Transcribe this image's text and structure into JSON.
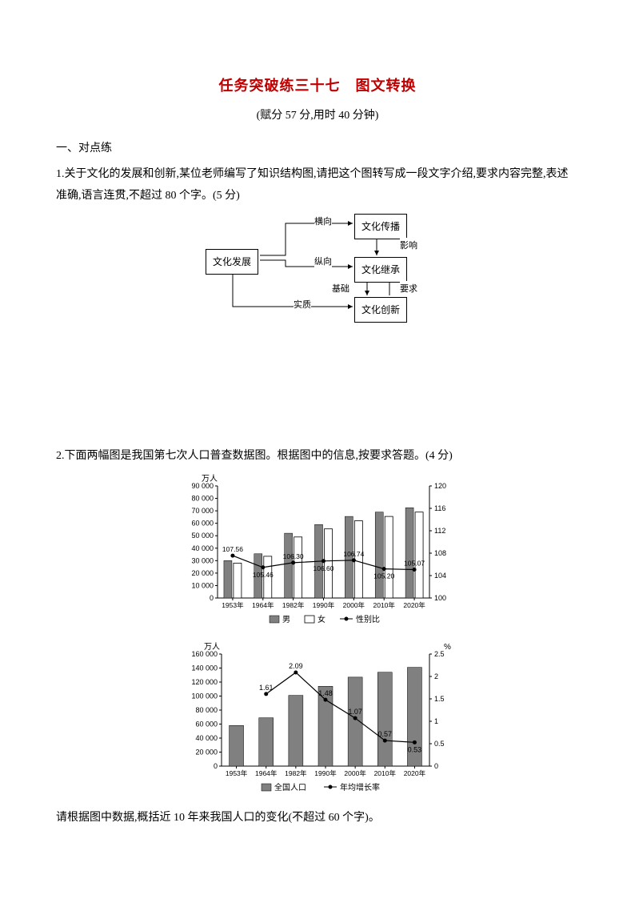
{
  "title": "任务突破练三十七　图文转换",
  "subtitle": "(赋分 57 分,用时 40 分钟)",
  "sec1": "一、对点练",
  "q1": "1.关于文化的发展和创新,某位老师编写了知识结构图,请把这个图转写成一段文字介绍,要求内容完整,表述准确,语言连贯,不超过 80 个字。(5 分)",
  "diagram": {
    "n1": "文化发展",
    "n2": "文化传播",
    "n3": "文化继承",
    "n4": "文化创新",
    "e1": "横向",
    "e2": "纵向",
    "e3": "实质",
    "e4": "影响",
    "e5": "基础",
    "e6": "要求"
  },
  "q2": "2.下面两幅图是我国第七次人口普查数据图。根据图中的信息,按要求答题。(4 分)",
  "q2b": "请根据图中数据,概括近 10 年来我国人口的变化(不超过 60 个字)。",
  "chart1": {
    "y1_unit": "万人",
    "y2_max": 120,
    "categories": [
      "1953年",
      "1964年",
      "1982年",
      "1990年",
      "2000年",
      "2010年",
      "2020年"
    ],
    "y1_ticks": [
      "0",
      "10 000",
      "20 000",
      "30 000",
      "40 000",
      "50 000",
      "60 000",
      "70 000",
      "80 000",
      "90 000"
    ],
    "y2_ticks": [
      "100",
      "104",
      "108",
      "112",
      "116",
      "120"
    ],
    "male": [
      30000,
      35500,
      52000,
      59000,
      65500,
      69000,
      72500
    ],
    "female": [
      28000,
      33500,
      49000,
      55500,
      62000,
      65500,
      69000
    ],
    "ratio": [
      107.56,
      105.46,
      106.3,
      106.6,
      106.74,
      105.2,
      105.07
    ],
    "legend": [
      "男",
      "女",
      "性别比"
    ],
    "colors": {
      "male": "#808080",
      "female": "#ffffff",
      "line": "#000000",
      "axis": "#000000",
      "grid": "#000000"
    }
  },
  "chart2": {
    "y1_unit": "万人",
    "y2_unit": "%",
    "categories": [
      "1953年",
      "1964年",
      "1982年",
      "1990年",
      "2000年",
      "2010年",
      "2020年"
    ],
    "y1_ticks": [
      "0",
      "20 000",
      "40 000",
      "60 000",
      "80 000",
      "100 000",
      "120 000",
      "140 000",
      "160 000"
    ],
    "y2_ticks": [
      "0",
      "0.5",
      "1",
      "1.5",
      "2",
      "2.5"
    ],
    "pop": [
      58000,
      69000,
      101000,
      114000,
      127000,
      134000,
      141000
    ],
    "growth": [
      null,
      1.61,
      2.09,
      1.48,
      1.07,
      0.57,
      0.53
    ],
    "legend": [
      "全国人口",
      "年均增长率"
    ],
    "colors": {
      "bar": "#808080",
      "line": "#000000",
      "axis": "#000000"
    }
  }
}
